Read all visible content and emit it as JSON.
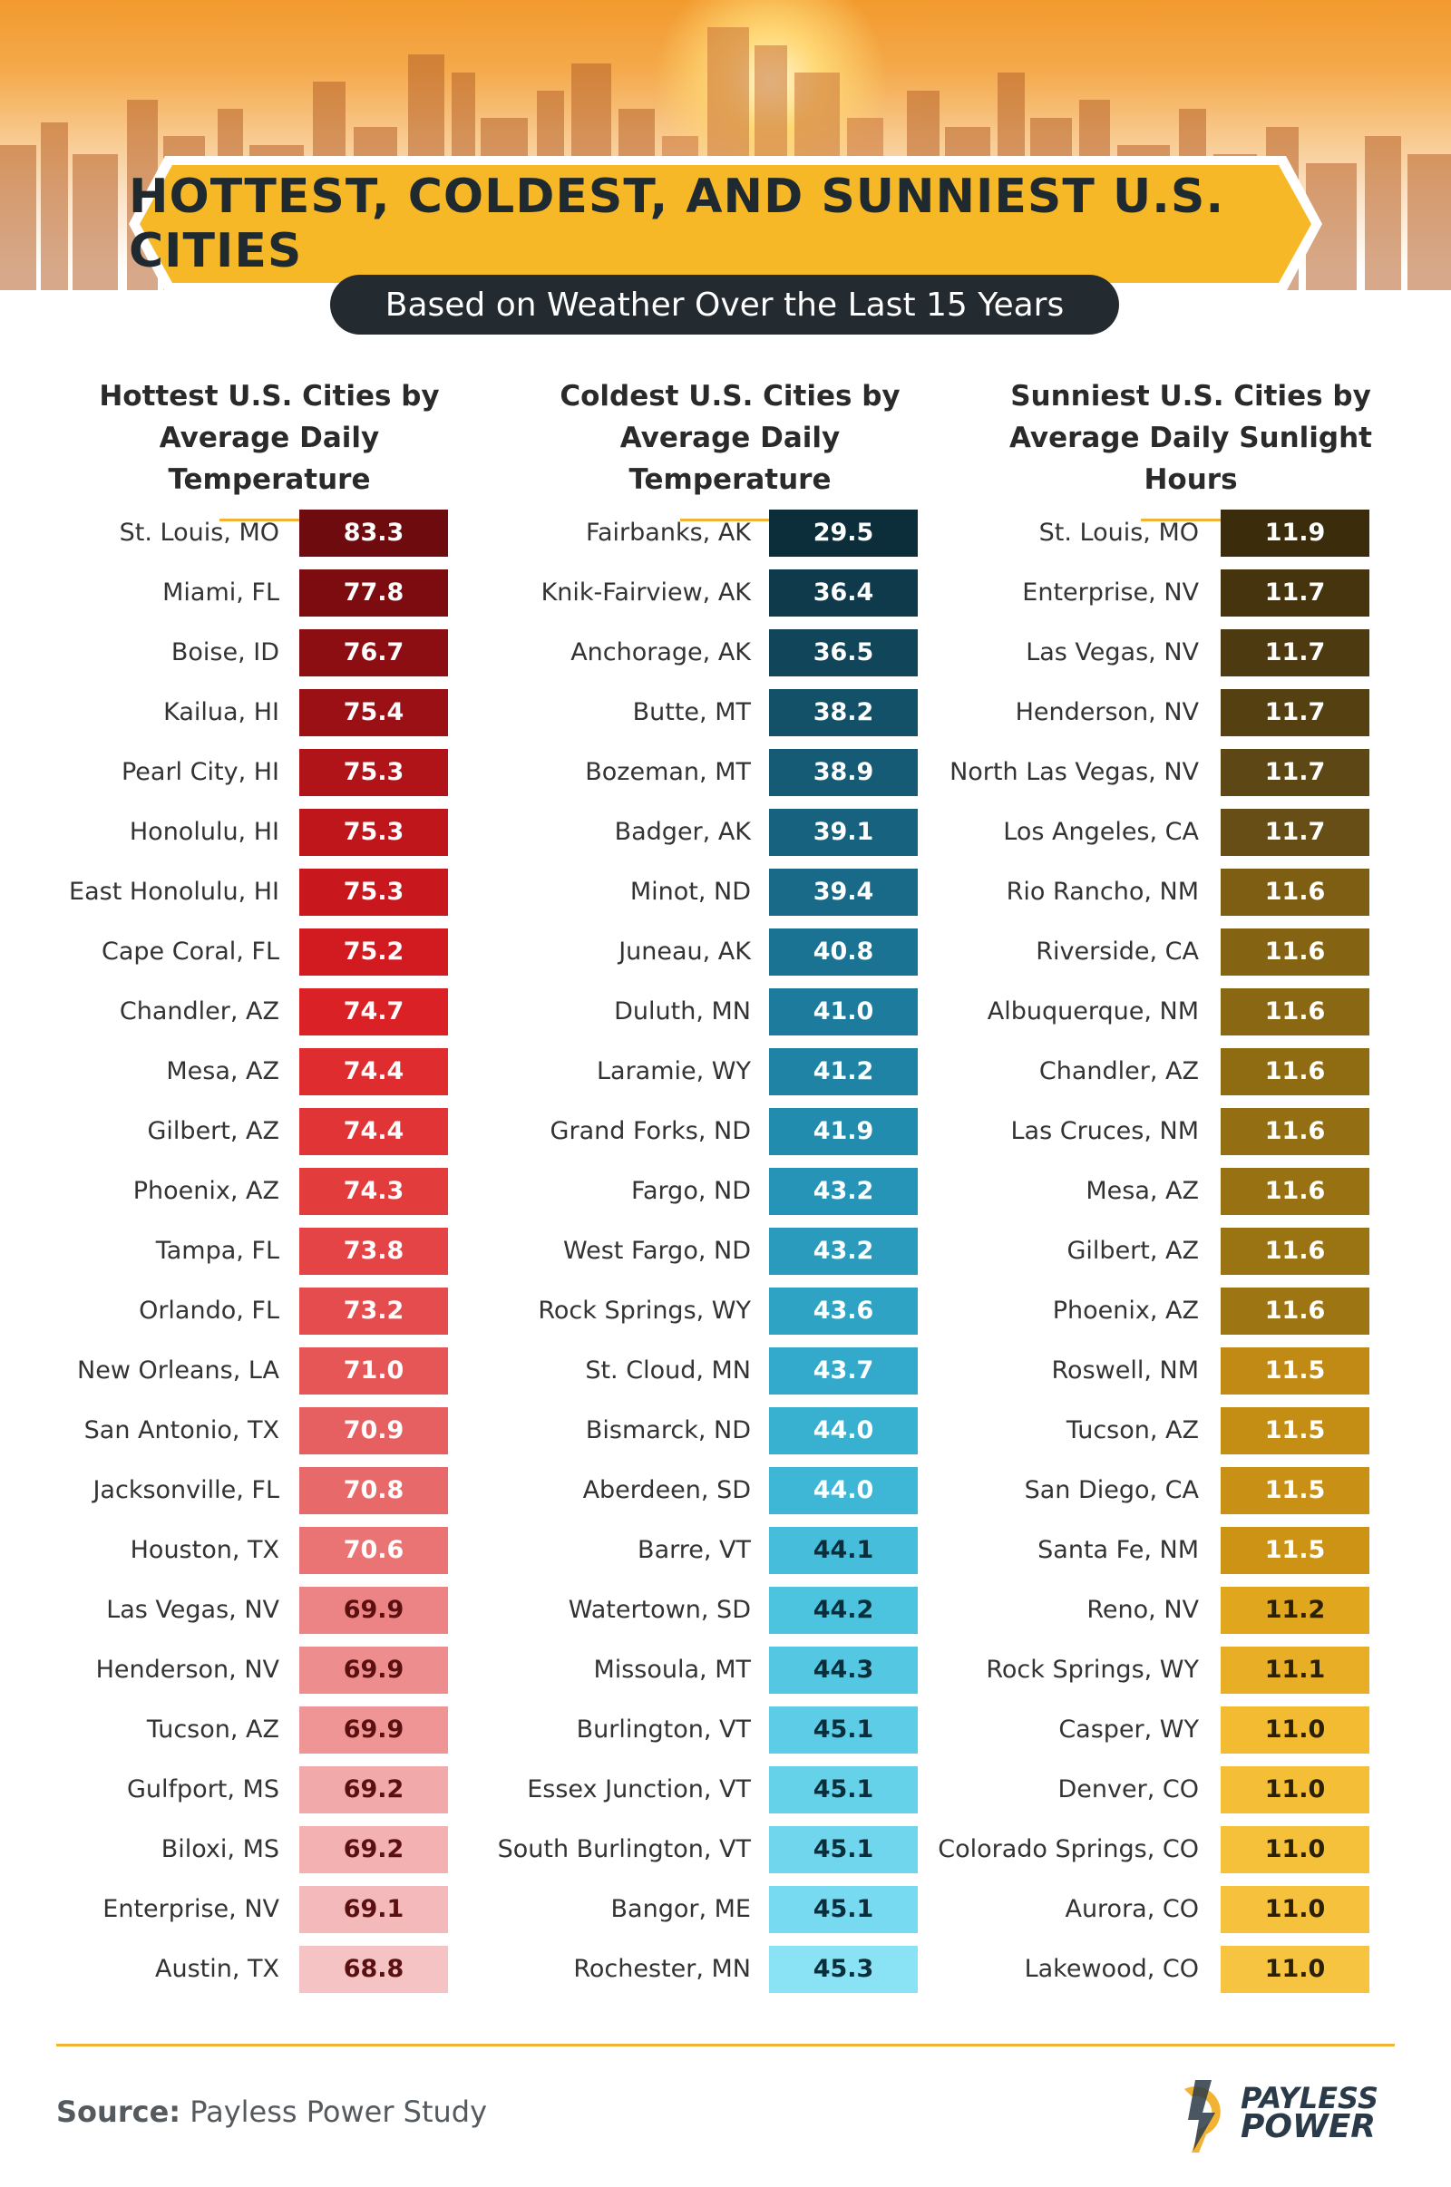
{
  "title": "HOTTEST, COLDEST, AND SUNNIEST U.S. CITIES",
  "subtitle": "Based on Weather Over the Last 15 Years",
  "columns": [
    {
      "heading_line1": "Hottest U.S. Cities by",
      "heading_line2": "Average Daily Temperature",
      "rows": [
        {
          "city": "St. Louis, MO",
          "value": "83.3",
          "bg": "#6e0b0f",
          "fg": "#ffffff"
        },
        {
          "city": "Miami, FL",
          "value": "77.8",
          "bg": "#7d0c10",
          "fg": "#ffffff"
        },
        {
          "city": "Boise, ID",
          "value": "76.7",
          "bg": "#8c0e12",
          "fg": "#ffffff"
        },
        {
          "city": "Kailua, HI",
          "value": "75.4",
          "bg": "#9b1015",
          "fg": "#ffffff"
        },
        {
          "city": "Pearl City, HI",
          "value": "75.3",
          "bg": "#b01418",
          "fg": "#ffffff"
        },
        {
          "city": "Honolulu, HI",
          "value": "75.3",
          "bg": "#bf161b",
          "fg": "#ffffff"
        },
        {
          "city": "East Honolulu, HI",
          "value": "75.3",
          "bg": "#c8181d",
          "fg": "#ffffff"
        },
        {
          "city": "Cape Coral, FL",
          "value": "75.2",
          "bg": "#d21b20",
          "fg": "#ffffff"
        },
        {
          "city": "Chandler, AZ",
          "value": "74.7",
          "bg": "#da2226",
          "fg": "#ffffff"
        },
        {
          "city": "Mesa, AZ",
          "value": "74.4",
          "bg": "#df2c2f",
          "fg": "#ffffff"
        },
        {
          "city": "Gilbert, AZ",
          "value": "74.4",
          "bg": "#e13436",
          "fg": "#ffffff"
        },
        {
          "city": "Phoenix, AZ",
          "value": "74.3",
          "bg": "#e33c3d",
          "fg": "#ffffff"
        },
        {
          "city": "Tampa, FL",
          "value": "73.8",
          "bg": "#e44446",
          "fg": "#ffffff"
        },
        {
          "city": "Orlando, FL",
          "value": "73.2",
          "bg": "#e54c4e",
          "fg": "#ffffff"
        },
        {
          "city": "New Orleans, LA",
          "value": "71.0",
          "bg": "#e65657",
          "fg": "#ffffff"
        },
        {
          "city": "San Antonio, TX",
          "value": "70.9",
          "bg": "#e76061",
          "fg": "#ffffff"
        },
        {
          "city": "Jacksonville, FL",
          "value": "70.8",
          "bg": "#e8696a",
          "fg": "#ffffff"
        },
        {
          "city": "Houston, TX",
          "value": "70.6",
          "bg": "#ea7374",
          "fg": "#ffffff"
        },
        {
          "city": "Las Vegas, NV",
          "value": "69.9",
          "bg": "#ec8384",
          "fg": "#5a1010"
        },
        {
          "city": "Henderson, NV",
          "value": "69.9",
          "bg": "#ee8d8e",
          "fg": "#5a1010"
        },
        {
          "city": "Tucson, AZ",
          "value": "69.9",
          "bg": "#ef9596",
          "fg": "#5a1010"
        },
        {
          "city": "Gulfport, MS",
          "value": "69.2",
          "bg": "#f2a9aa",
          "fg": "#5a1010"
        },
        {
          "city": "Biloxi, MS",
          "value": "69.2",
          "bg": "#f3b1b2",
          "fg": "#5a1010"
        },
        {
          "city": "Enterprise, NV",
          "value": "69.1",
          "bg": "#f4b9ba",
          "fg": "#5a1010"
        },
        {
          "city": "Austin, TX",
          "value": "68.8",
          "bg": "#f6c3c4",
          "fg": "#5a1010"
        }
      ]
    },
    {
      "heading_line1": "Coldest U.S. Cities by",
      "heading_line2": "Average Daily Temperature",
      "rows": [
        {
          "city": "Fairbanks, AK",
          "value": "29.5",
          "bg": "#0c2d3a",
          "fg": "#ffffff"
        },
        {
          "city": "Knik-Fairview, AK",
          "value": "36.4",
          "bg": "#0f3a4b",
          "fg": "#ffffff"
        },
        {
          "city": "Anchorage, AK",
          "value": "36.5",
          "bg": "#11455a",
          "fg": "#ffffff"
        },
        {
          "city": "Butte, MT",
          "value": "38.2",
          "bg": "#135169",
          "fg": "#ffffff"
        },
        {
          "city": "Bozeman, MT",
          "value": "38.9",
          "bg": "#155b75",
          "fg": "#ffffff"
        },
        {
          "city": "Badger, AK",
          "value": "39.1",
          "bg": "#17627e",
          "fg": "#ffffff"
        },
        {
          "city": "Minot, ND",
          "value": "39.4",
          "bg": "#196a88",
          "fg": "#ffffff"
        },
        {
          "city": "Juneau, AK",
          "value": "40.8",
          "bg": "#1b7393",
          "fg": "#ffffff"
        },
        {
          "city": "Duluth, MN",
          "value": "41.0",
          "bg": "#1d7b9d",
          "fg": "#ffffff"
        },
        {
          "city": "Laramie, WY",
          "value": "41.2",
          "bg": "#1f83a6",
          "fg": "#ffffff"
        },
        {
          "city": "Grand Forks, ND",
          "value": "41.9",
          "bg": "#228caf",
          "fg": "#ffffff"
        },
        {
          "city": "Fargo, ND",
          "value": "43.2",
          "bg": "#2694b6",
          "fg": "#ffffff"
        },
        {
          "city": "West Fargo, ND",
          "value": "43.2",
          "bg": "#2a9bbd",
          "fg": "#ffffff"
        },
        {
          "city": "Rock Springs, WY",
          "value": "43.6",
          "bg": "#2ea3c4",
          "fg": "#ffffff"
        },
        {
          "city": "St. Cloud, MN",
          "value": "43.7",
          "bg": "#33aacb",
          "fg": "#ffffff"
        },
        {
          "city": "Bismarck, ND",
          "value": "44.0",
          "bg": "#38b1d1",
          "fg": "#ffffff"
        },
        {
          "city": "Aberdeen, SD",
          "value": "44.0",
          "bg": "#3eb7d6",
          "fg": "#ffffff"
        },
        {
          "city": "Barre, VT",
          "value": "44.1",
          "bg": "#45bddb",
          "fg": "#0c2d3a"
        },
        {
          "city": "Watertown, SD",
          "value": "44.2",
          "bg": "#4cc3df",
          "fg": "#0c2d3a"
        },
        {
          "city": "Missoula, MT",
          "value": "44.3",
          "bg": "#54c8e3",
          "fg": "#0c2d3a"
        },
        {
          "city": "Burlington, VT",
          "value": "45.1",
          "bg": "#5dcde7",
          "fg": "#0c2d3a"
        },
        {
          "city": "Essex Junction, VT",
          "value": "45.1",
          "bg": "#66d2ea",
          "fg": "#0c2d3a"
        },
        {
          "city": "South Burlington, VT",
          "value": "45.1",
          "bg": "#6fd6ed",
          "fg": "#0c2d3a"
        },
        {
          "city": "Bangor, ME",
          "value": "45.1",
          "bg": "#78daf0",
          "fg": "#0c2d3a"
        },
        {
          "city": "Rochester, MN",
          "value": "45.3",
          "bg": "#8ae2f5",
          "fg": "#0c2d3a"
        }
      ]
    },
    {
      "heading_line1": "Sunniest U.S. Cities by",
      "heading_line2": "Average Daily Sunlight Hours",
      "rows": [
        {
          "city": "St. Louis, MO",
          "value": "11.9",
          "bg": "#3b2c0c",
          "fg": "#ffffff"
        },
        {
          "city": "Enterprise, NV",
          "value": "11.7",
          "bg": "#45340e",
          "fg": "#ffffff"
        },
        {
          "city": "Las Vegas, NV",
          "value": "11.7",
          "bg": "#4d3a10",
          "fg": "#ffffff"
        },
        {
          "city": "Henderson, NV",
          "value": "11.7",
          "bg": "#554012",
          "fg": "#ffffff"
        },
        {
          "city": "North Las Vegas, NV",
          "value": "11.7",
          "bg": "#5d4714",
          "fg": "#ffffff"
        },
        {
          "city": "Los Angeles, CA",
          "value": "11.7",
          "bg": "#664e16",
          "fg": "#ffffff"
        },
        {
          "city": "Rio Rancho, NM",
          "value": "11.6",
          "bg": "#7d5e12",
          "fg": "#ffffff"
        },
        {
          "city": "Riverside, CA",
          "value": "11.6",
          "bg": "#846312",
          "fg": "#ffffff"
        },
        {
          "city": "Albuquerque, NM",
          "value": "11.6",
          "bg": "#8a6712",
          "fg": "#ffffff"
        },
        {
          "city": "Chandler, AZ",
          "value": "11.6",
          "bg": "#8f6b12",
          "fg": "#ffffff"
        },
        {
          "city": "Las Cruces, NM",
          "value": "11.6",
          "bg": "#936e12",
          "fg": "#ffffff"
        },
        {
          "city": "Mesa, AZ",
          "value": "11.6",
          "bg": "#977112",
          "fg": "#ffffff"
        },
        {
          "city": "Gilbert, AZ",
          "value": "11.6",
          "bg": "#9a7312",
          "fg": "#ffffff"
        },
        {
          "city": "Phoenix, AZ",
          "value": "11.6",
          "bg": "#9d7512",
          "fg": "#ffffff"
        },
        {
          "city": "Roswell, NM",
          "value": "11.5",
          "bg": "#c08a14",
          "fg": "#ffffff"
        },
        {
          "city": "Tucson, AZ",
          "value": "11.5",
          "bg": "#c48d14",
          "fg": "#ffffff"
        },
        {
          "city": "San Diego, CA",
          "value": "11.5",
          "bg": "#c89014",
          "fg": "#ffffff"
        },
        {
          "city": "Santa Fe, NM",
          "value": "11.5",
          "bg": "#cc9314",
          "fg": "#ffffff"
        },
        {
          "city": "Reno, NV",
          "value": "11.2",
          "bg": "#dfa61e",
          "fg": "#2a2108"
        },
        {
          "city": "Rock Springs, WY",
          "value": "11.1",
          "bg": "#e7ae26",
          "fg": "#2a2108"
        },
        {
          "city": "Casper, WY",
          "value": "11.0",
          "bg": "#f2bb32",
          "fg": "#2a2108"
        },
        {
          "city": "Denver, CO",
          "value": "11.0",
          "bg": "#f4be36",
          "fg": "#2a2108"
        },
        {
          "city": "Colorado Springs, CO",
          "value": "11.0",
          "bg": "#f5c03a",
          "fg": "#2a2108"
        },
        {
          "city": "Aurora, CO",
          "value": "11.0",
          "bg": "#f6c23e",
          "fg": "#2a2108"
        },
        {
          "city": "Lakewood, CO",
          "value": "11.0",
          "bg": "#f7c442",
          "fg": "#2a2108"
        }
      ]
    }
  ],
  "footer": {
    "source_label": "Source:",
    "source_text": "Payless Power Study",
    "logo_line1": "PAYLESS",
    "logo_line2": "POWER"
  },
  "colors": {
    "accent": "#f2b233",
    "banner_fill": "#f6b827",
    "pill_bg": "#232a30"
  }
}
